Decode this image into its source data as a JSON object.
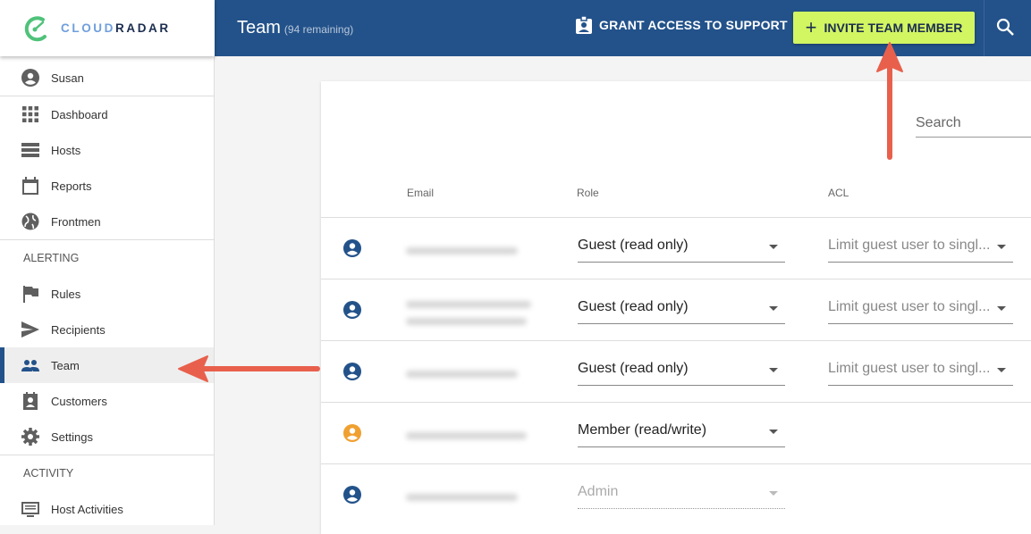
{
  "brand": {
    "name_part1": "CLOUD",
    "name_part2": "RADAR",
    "logo_color": "#4fc27a"
  },
  "header": {
    "title": "Team",
    "subtitle": "(94 remaining)",
    "grant_label": "GRANT ACCESS TO SUPPORT",
    "invite_label": "INVITE TEAM MEMBER",
    "bg": "#23528a",
    "invite_bg": "#d2f562"
  },
  "sidebar": {
    "user": "Susan",
    "items": [
      {
        "label": "Dashboard",
        "icon": "grid-icon"
      },
      {
        "label": "Hosts",
        "icon": "list-icon"
      },
      {
        "label": "Reports",
        "icon": "calendar-icon"
      },
      {
        "label": "Frontmen",
        "icon": "globe-icon"
      }
    ],
    "alerting_title": "ALERTING",
    "alerting": [
      {
        "label": "Rules",
        "icon": "flag-icon"
      },
      {
        "label": "Recipients",
        "icon": "send-icon"
      },
      {
        "label": "Team",
        "icon": "people-icon",
        "active": true
      },
      {
        "label": "Customers",
        "icon": "contact-icon"
      },
      {
        "label": "Settings",
        "icon": "gear-icon"
      }
    ],
    "activity_title": "ACTIVITY",
    "activity": [
      {
        "label": "Host Activities",
        "icon": "monitor-icon"
      }
    ]
  },
  "table": {
    "search_placeholder": "Search",
    "columns": [
      "Email",
      "Role",
      "ACL"
    ],
    "rows": [
      {
        "role": "Guest (read only)",
        "acl": "Limit guest user to singl...",
        "status_color": "#23528a"
      },
      {
        "role": "Guest (read only)",
        "acl": "Limit guest user to singl...",
        "status_color": "#23528a"
      },
      {
        "role": "Guest (read only)",
        "acl": "Limit guest user to singl...",
        "status_color": "#23528a"
      },
      {
        "role": "Member (read/write)",
        "acl": "",
        "status_color": "#f0a030"
      },
      {
        "role": "Admin",
        "acl": "",
        "status_color": "#23528a",
        "disabled": true
      }
    ]
  },
  "annotation_color": "#e8604c"
}
